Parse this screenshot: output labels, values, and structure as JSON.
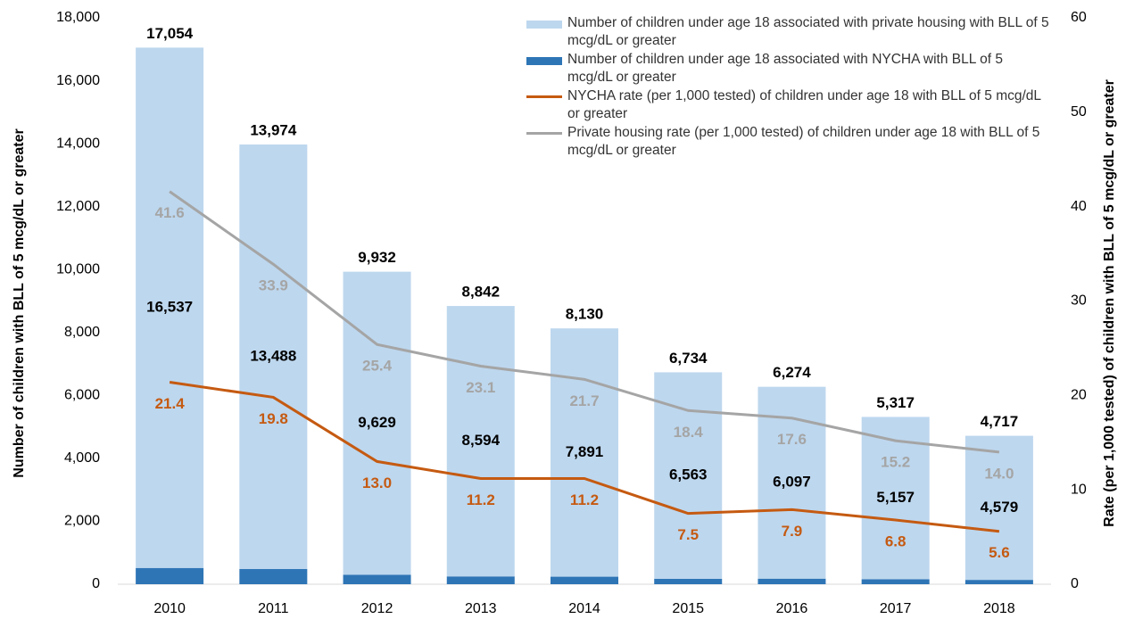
{
  "chart_data": {
    "type": "bar",
    "categories": [
      "2010",
      "2011",
      "2012",
      "2013",
      "2014",
      "2015",
      "2016",
      "2017",
      "2018"
    ],
    "ylabel": "Number of children with BLL of 5 mcg/dL or greater",
    "y2label": "Rate (per 1,000 tested) of children with BLL of 5 mcg/dL or greater",
    "ylim": [
      0,
      18000
    ],
    "yticks": [
      0,
      {
        "value": 2000,
        "label": "2,000"
      },
      {
        "value": 4000,
        "label": "4,000"
      },
      {
        "value": 6000,
        "label": "6,000"
      },
      {
        "value": 8000,
        "label": "8,000"
      },
      {
        "value": 10000,
        "label": "10,000"
      },
      {
        "value": 12000,
        "label": "12,000"
      },
      {
        "value": 14000,
        "label": "14,000"
      },
      {
        "value": 16000,
        "label": "16,000"
      },
      {
        "value": 18000,
        "label": "18,000"
      }
    ],
    "y2lim": [
      0,
      60
    ],
    "y2ticks": [
      0,
      10,
      20,
      30,
      40,
      50,
      60
    ],
    "total_labels": [
      "17,054",
      "13,974",
      "9,932",
      "8,842",
      "8,130",
      "6,734",
      "6,274",
      "5,317",
      "4,717"
    ],
    "series": [
      {
        "name": "Number of children under age 18 associated with private housing with BLL of 5 mcg/dL or greater",
        "type": "bar",
        "color": "#bdd7ee",
        "values": [
          16537,
          13488,
          9629,
          8594,
          7891,
          6563,
          6097,
          5157,
          4579
        ],
        "value_labels": [
          "16,537",
          "13,488",
          "9,629",
          "8,594",
          "7,891",
          "6,563",
          "6,097",
          "5,157",
          "4,579"
        ]
      },
      {
        "name": "Number of children under age 18 associated with NYCHA with BLL of 5 mcg/dL or greater",
        "type": "bar",
        "color": "#2e75b6",
        "values": [
          517,
          486,
          303,
          248,
          239,
          171,
          177,
          160,
          138
        ]
      },
      {
        "name": "NYCHA rate (per 1,000 tested) of children under age 18 with BLL of 5 mcg/dL or greater",
        "type": "line",
        "axis": "y2",
        "color": "#c55a11",
        "values": [
          21.4,
          19.8,
          13.0,
          11.2,
          11.2,
          7.5,
          7.9,
          6.8,
          5.6
        ],
        "value_labels": [
          "21.4",
          "19.8",
          "13.0",
          "11.2",
          "11.2",
          "7.5",
          "7.9",
          "6.8",
          "5.6"
        ]
      },
      {
        "name": "Private housing rate (per 1,000 tested) of children under age 18 with BLL of 5 mcg/dL or greater",
        "type": "line",
        "axis": "y2",
        "color": "#a5a5a5",
        "values": [
          41.6,
          33.9,
          25.4,
          23.1,
          21.7,
          18.4,
          17.6,
          15.2,
          14.0
        ],
        "value_labels": [
          "41.6",
          "33.9",
          "25.4",
          "23.1",
          "21.7",
          "18.4",
          "17.6",
          "15.2",
          "14.0"
        ]
      }
    ]
  }
}
